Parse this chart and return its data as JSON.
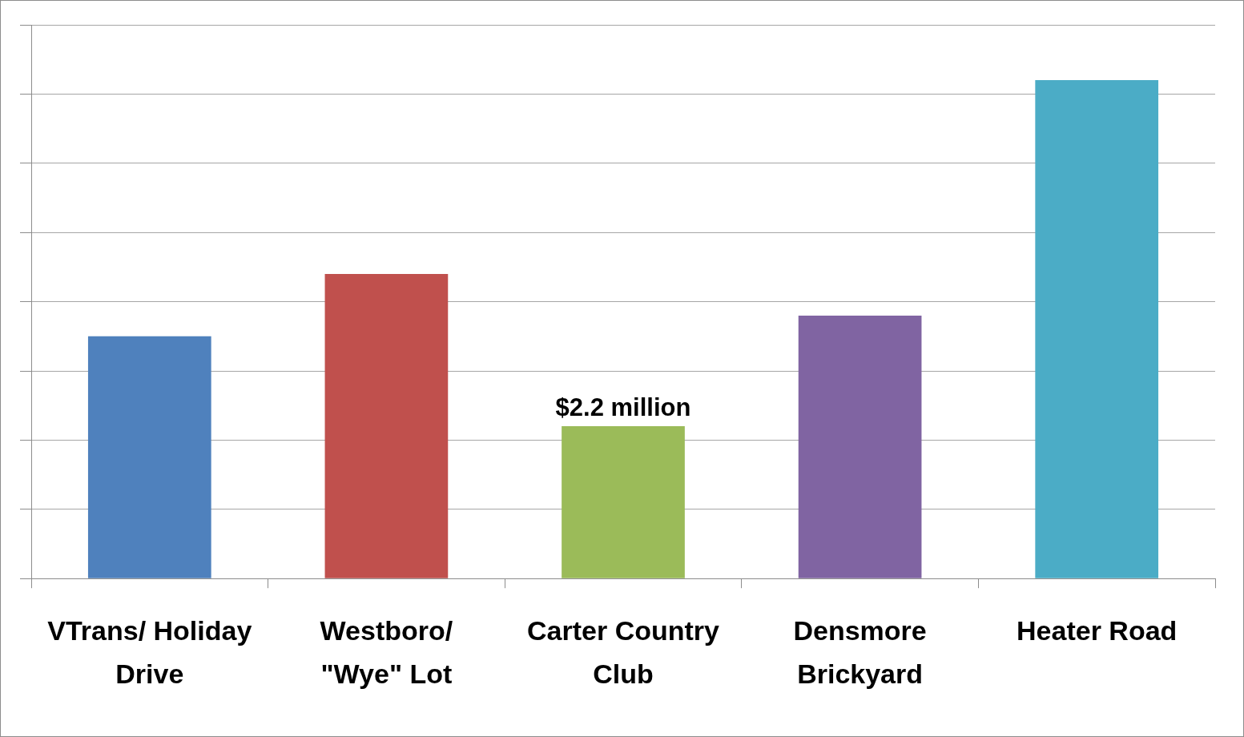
{
  "chart_data": {
    "type": "bar",
    "categories": [
      "VTrans/ Holiday Drive",
      "Westboro/ \"Wye\" Lot",
      "Carter Country Club",
      "Densmore Brickyard",
      "Heater Road"
    ],
    "values": [
      3.5,
      4.4,
      2.2,
      3.8,
      7.2
    ],
    "colors": [
      "#4f81bd",
      "#c0504d",
      "#9bbb59",
      "#8064a2",
      "#4bacc6"
    ],
    "value_labels": [
      null,
      null,
      "$2.2 million",
      null,
      null
    ],
    "ylim": [
      0,
      8
    ],
    "yticks": [
      {
        "value": 0,
        "label": null
      },
      {
        "value": 1,
        "label": null
      },
      {
        "value": 2,
        "label": null
      },
      {
        "value": 3,
        "label": null
      },
      {
        "value": 4,
        "label": null
      },
      {
        "value": 5,
        "label": null
      },
      {
        "value": 6,
        "label": null
      },
      {
        "value": 7,
        "label": null
      },
      {
        "value": 8,
        "label": null
      }
    ],
    "grid": "y",
    "legend": false,
    "tick_labels": "x"
  }
}
